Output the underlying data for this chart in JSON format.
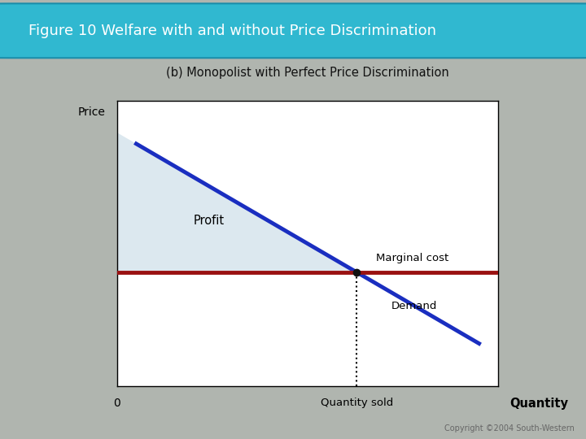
{
  "title_banner": "Figure 10 Welfare with and without Price Discrimination",
  "subtitle": "(b) Monopolist with Perfect Price Discrimination",
  "ylabel": "Price",
  "xlabel": "Quantity",
  "x_quantity_sold_label": "Quantity sold",
  "profit_label": "Profit",
  "marginal_cost_label": "Marginal cost",
  "demand_label": "Demand",
  "zero_label": "0",
  "background_color": "#b0b5af",
  "banner_color": "#30b8d0",
  "plot_bg_color": "#ffffff",
  "demand_color": "#1a2ec0",
  "mc_color": "#991111",
  "profit_fill_color": "#dce8ef",
  "dot_color": "#111111",
  "title_text_color": "#ffffff",
  "subtitle_color": "#111111",
  "xlim": [
    0,
    10
  ],
  "ylim": [
    0,
    10
  ],
  "demand_x_start": 0.5,
  "demand_x_end": 9.5,
  "demand_y_start": 8.5,
  "demand_y_end": 1.5,
  "mc_level": 4.0,
  "copyright_text": "Copyright ©2004 South-Western"
}
